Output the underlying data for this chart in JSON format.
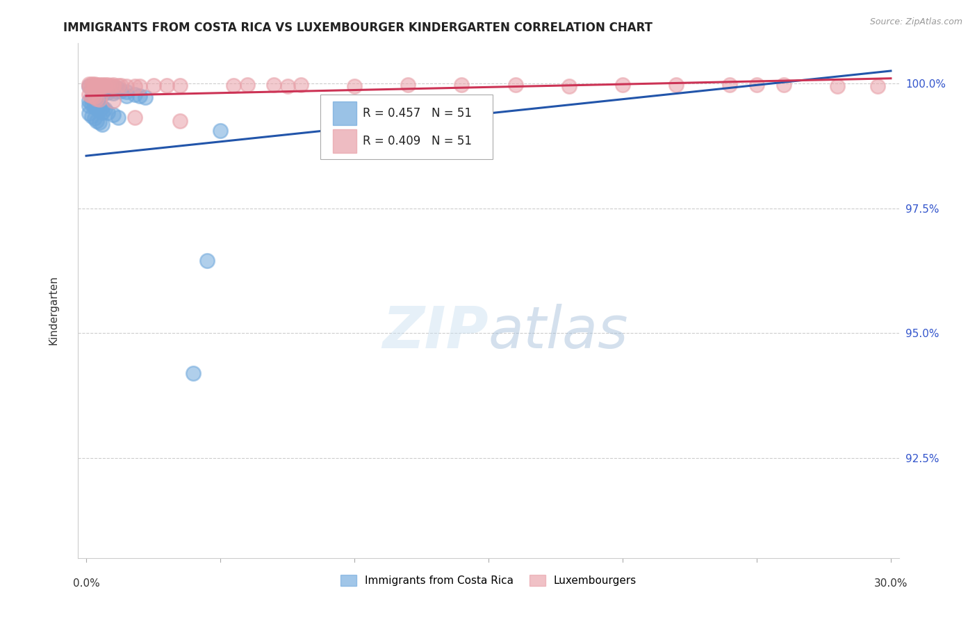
{
  "title": "IMMIGRANTS FROM COSTA RICA VS LUXEMBOURGER KINDERGARTEN CORRELATION CHART",
  "source": "Source: ZipAtlas.com",
  "ylabel": "Kindergarten",
  "ytick_labels": [
    "100.0%",
    "97.5%",
    "95.0%",
    "92.5%"
  ],
  "ytick_values": [
    1.0,
    0.975,
    0.95,
    0.925
  ],
  "ymin": 0.905,
  "ymax": 1.008,
  "xmin": -0.003,
  "xmax": 0.303,
  "legend_blue_label": "Immigrants from Costa Rica",
  "legend_pink_label": "Luxembourgers",
  "legend_r_blue": "R = 0.457",
  "legend_n_blue": "N = 51",
  "legend_r_pink": "R = 0.409",
  "legend_n_pink": "N = 51",
  "blue_color": "#6fa8dc",
  "pink_color": "#e8a0a8",
  "trendline_blue": "#2255aa",
  "trendline_pink": "#cc3355",
  "blue_trendline_x": [
    0.0,
    0.3
  ],
  "blue_trendline_y": [
    0.9855,
    1.0025
  ],
  "pink_trendline_x": [
    0.0,
    0.3
  ],
  "pink_trendline_y": [
    0.9975,
    1.001
  ],
  "blue_scatter": [
    [
      0.001,
      0.9995
    ],
    [
      0.002,
      0.999
    ],
    [
      0.003,
      0.9995
    ],
    [
      0.003,
      0.998
    ],
    [
      0.004,
      0.999
    ],
    [
      0.004,
      0.9985
    ],
    [
      0.005,
      0.9993
    ],
    [
      0.005,
      0.9982
    ],
    [
      0.006,
      0.9995
    ],
    [
      0.006,
      0.9985
    ],
    [
      0.006,
      0.9978
    ],
    [
      0.007,
      0.9993
    ],
    [
      0.007,
      0.9985
    ],
    [
      0.008,
      0.999
    ],
    [
      0.008,
      0.9982
    ],
    [
      0.009,
      0.9988
    ],
    [
      0.01,
      0.9992
    ],
    [
      0.01,
      0.998
    ],
    [
      0.011,
      0.9985
    ],
    [
      0.012,
      0.999
    ],
    [
      0.013,
      0.9985
    ],
    [
      0.015,
      0.9983
    ],
    [
      0.015,
      0.9975
    ],
    [
      0.018,
      0.9978
    ],
    [
      0.02,
      0.9975
    ],
    [
      0.022,
      0.9972
    ],
    [
      0.001,
      0.9965
    ],
    [
      0.001,
      0.9955
    ],
    [
      0.002,
      0.9968
    ],
    [
      0.002,
      0.9958
    ],
    [
      0.003,
      0.9962
    ],
    [
      0.003,
      0.9952
    ],
    [
      0.004,
      0.996
    ],
    [
      0.004,
      0.995
    ],
    [
      0.005,
      0.9955
    ],
    [
      0.005,
      0.9945
    ],
    [
      0.006,
      0.9952
    ],
    [
      0.006,
      0.9942
    ],
    [
      0.007,
      0.9948
    ],
    [
      0.008,
      0.9942
    ],
    [
      0.01,
      0.9938
    ],
    [
      0.012,
      0.9932
    ],
    [
      0.001,
      0.994
    ],
    [
      0.002,
      0.9935
    ],
    [
      0.003,
      0.993
    ],
    [
      0.004,
      0.9925
    ],
    [
      0.005,
      0.9922
    ],
    [
      0.006,
      0.9918
    ],
    [
      0.05,
      0.9905
    ],
    [
      0.045,
      0.9645
    ],
    [
      0.04,
      0.942
    ]
  ],
  "pink_scatter": [
    [
      0.001,
      0.9999
    ],
    [
      0.001,
      0.9995
    ],
    [
      0.002,
      0.9998
    ],
    [
      0.002,
      0.9993
    ],
    [
      0.003,
      0.9998
    ],
    [
      0.003,
      0.9993
    ],
    [
      0.004,
      0.9997
    ],
    [
      0.004,
      0.9992
    ],
    [
      0.005,
      0.9997
    ],
    [
      0.005,
      0.9993
    ],
    [
      0.006,
      0.9997
    ],
    [
      0.006,
      0.9994
    ],
    [
      0.007,
      0.9997
    ],
    [
      0.007,
      0.9994
    ],
    [
      0.008,
      0.9997
    ],
    [
      0.009,
      0.9996
    ],
    [
      0.01,
      0.9997
    ],
    [
      0.01,
      0.9994
    ],
    [
      0.012,
      0.9996
    ],
    [
      0.013,
      0.9996
    ],
    [
      0.015,
      0.9995
    ],
    [
      0.018,
      0.9995
    ],
    [
      0.02,
      0.9995
    ],
    [
      0.025,
      0.9996
    ],
    [
      0.03,
      0.9996
    ],
    [
      0.035,
      0.9996
    ],
    [
      0.001,
      0.9978
    ],
    [
      0.002,
      0.9975
    ],
    [
      0.003,
      0.9973
    ],
    [
      0.004,
      0.997
    ],
    [
      0.005,
      0.9968
    ],
    [
      0.01,
      0.9965
    ],
    [
      0.018,
      0.9932
    ],
    [
      0.035,
      0.9925
    ],
    [
      0.06,
      0.9997
    ],
    [
      0.07,
      0.9997
    ],
    [
      0.08,
      0.9997
    ],
    [
      0.12,
      0.9997
    ],
    [
      0.14,
      0.9997
    ],
    [
      0.16,
      0.9997
    ],
    [
      0.2,
      0.9997
    ],
    [
      0.22,
      0.9997
    ],
    [
      0.24,
      0.9997
    ],
    [
      0.25,
      0.9997
    ],
    [
      0.26,
      0.9997
    ],
    [
      0.055,
      0.9996
    ],
    [
      0.075,
      0.9994
    ],
    [
      0.1,
      0.9994
    ],
    [
      0.18,
      0.9994
    ],
    [
      0.28,
      0.9994
    ],
    [
      0.295,
      0.9995
    ]
  ]
}
